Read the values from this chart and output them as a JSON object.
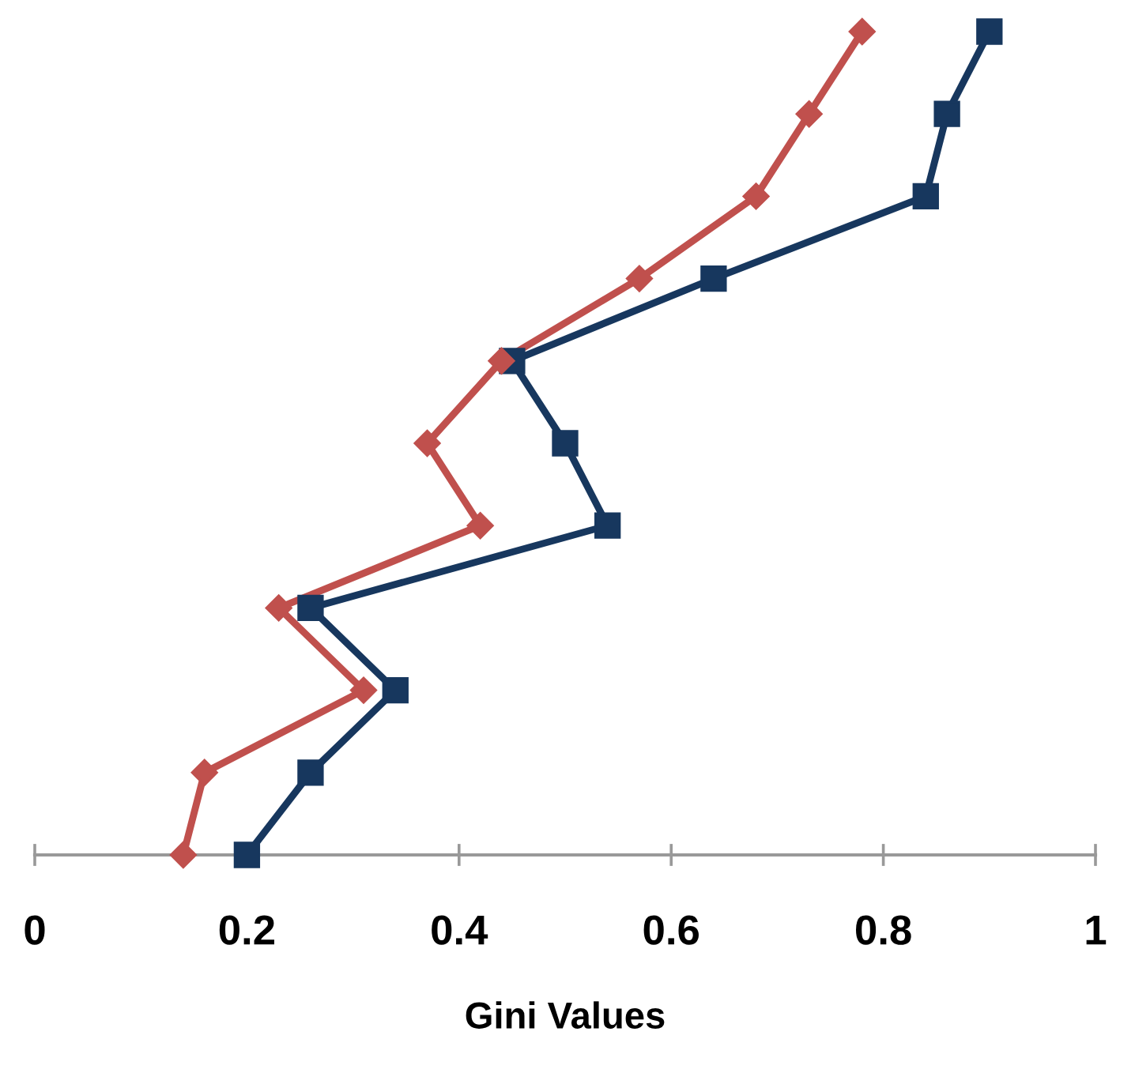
{
  "chart_data": {
    "type": "line",
    "orientation": "horizontal",
    "xlabel": "Gini Values",
    "categories": [
      null,
      null,
      null,
      null,
      null,
      null,
      null,
      null,
      null,
      null,
      null
    ],
    "series": [
      {
        "color": "#17375e",
        "marker": "square",
        "values": [
          0.9,
          0.86,
          0.84,
          0.64,
          0.45,
          0.5,
          0.54,
          0.26,
          0.34,
          0.26,
          0.2
        ]
      },
      {
        "color": "#c0504d",
        "marker": "diamond",
        "values": [
          0.78,
          0.73,
          0.68,
          0.57,
          0.44,
          0.37,
          0.42,
          0.23,
          0.31,
          0.16,
          0.14
        ]
      }
    ],
    "xlim": [
      0,
      1
    ],
    "xticks": [
      0,
      0.2,
      0.4,
      0.6,
      0.8,
      1
    ],
    "tick_labels": "x",
    "grid": false,
    "legend": false,
    "line_style": "solid"
  }
}
